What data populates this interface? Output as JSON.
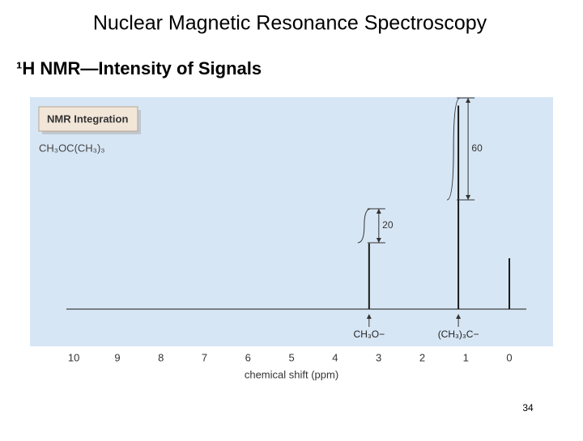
{
  "slide": {
    "title": "Nuclear Magnetic Resonance Spectroscopy",
    "subtitle": "¹H NMR—Intensity of Signals",
    "page_number": "34"
  },
  "chart_data": {
    "type": "spectrum",
    "panel_label": "NMR Integration",
    "compound": "CH₃OC(CH₃)₃",
    "xlabel": "chemical shift (ppm)",
    "xlim": [
      10.17,
      -0.39
    ],
    "xticks": [
      10,
      9,
      8,
      7,
      6,
      5,
      4,
      3,
      2,
      1,
      0
    ],
    "ylim": [
      0,
      100
    ],
    "color": "#1a1a1a",
    "peaks": [
      {
        "shift": 3.22,
        "height": 31,
        "label": "CH₃O−",
        "integration": 20
      },
      {
        "shift": 1.17,
        "height": 96,
        "label": "(CH₃)₃C−",
        "integration": 60
      },
      {
        "shift": 0,
        "height": 24
      }
    ]
  }
}
